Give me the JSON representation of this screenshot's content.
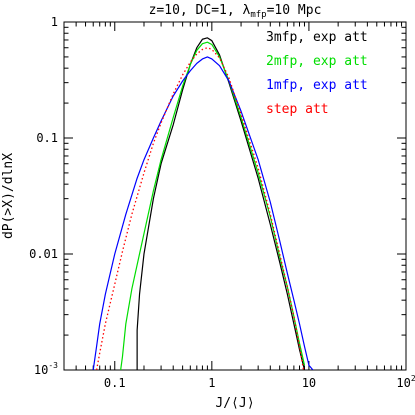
{
  "chart_data": {
    "type": "line",
    "title": {
      "prefix": "z=10, DC=1, ",
      "lambda_symbol": "λ",
      "lambda_sub": "mfp",
      "suffix": "=10 Mpc"
    },
    "xlabel": "J/⟨J⟩",
    "ylabel": "dP(>X)/dlnX",
    "xscale": "log",
    "yscale": "log",
    "xlim": [
      0.03,
      100
    ],
    "ylim": [
      0.001,
      1
    ],
    "x_ticks": [
      {
        "value": 0.1,
        "label": "0.1"
      },
      {
        "value": 1,
        "label": "1"
      },
      {
        "value": 10,
        "label": "10"
      },
      {
        "value": 100,
        "label": "10",
        "sup": "2"
      }
    ],
    "y_ticks": [
      {
        "value": 1,
        "label": "1"
      },
      {
        "value": 0.1,
        "label": "0.1"
      },
      {
        "value": 0.01,
        "label": "0.01"
      },
      {
        "value": 0.001,
        "label": "10",
        "sup": "-3"
      }
    ],
    "legend_placement": "top-right",
    "series": [
      {
        "name": "3mfp, exp att",
        "color": "#000000",
        "dash": "solid",
        "x": [
          0.17,
          0.17,
          0.18,
          0.2,
          0.25,
          0.3,
          0.4,
          0.5,
          0.6,
          0.7,
          0.8,
          0.9,
          1.0,
          1.2,
          1.5,
          2.0,
          3.0,
          4.0,
          5.0,
          6.0,
          7.0,
          8.0,
          9.0
        ],
        "y": [
          0.001,
          0.0022,
          0.0045,
          0.01,
          0.03,
          0.06,
          0.13,
          0.26,
          0.43,
          0.6,
          0.71,
          0.73,
          0.69,
          0.52,
          0.3,
          0.14,
          0.045,
          0.018,
          0.0085,
          0.0045,
          0.0025,
          0.0015,
          0.001
        ]
      },
      {
        "name": "2mfp, exp att",
        "color": "#00dd00",
        "dash": "solid",
        "x": [
          0.115,
          0.12,
          0.13,
          0.15,
          0.2,
          0.25,
          0.3,
          0.4,
          0.5,
          0.6,
          0.7,
          0.8,
          0.9,
          1.0,
          1.2,
          1.5,
          2.0,
          3.0,
          4.0,
          5.0,
          6.0,
          7.0,
          8.0,
          9.0
        ],
        "y": [
          0.001,
          0.0013,
          0.0025,
          0.005,
          0.015,
          0.035,
          0.065,
          0.15,
          0.28,
          0.43,
          0.57,
          0.65,
          0.67,
          0.64,
          0.5,
          0.31,
          0.15,
          0.05,
          0.021,
          0.0095,
          0.0052,
          0.0029,
          0.0017,
          0.0011
        ]
      },
      {
        "name": "1mfp, exp att",
        "color": "#0000ff",
        "dash": "solid",
        "x": [
          0.06,
          0.065,
          0.07,
          0.08,
          0.1,
          0.13,
          0.17,
          0.2,
          0.25,
          0.3,
          0.4,
          0.5,
          0.6,
          0.7,
          0.8,
          0.9,
          1.0,
          1.2,
          1.5,
          2.0,
          3.0,
          4.0,
          5.0,
          6.0,
          7.0,
          8.0,
          9.0,
          10.0,
          11.0
        ],
        "y": [
          0.001,
          0.0016,
          0.0025,
          0.0045,
          0.01,
          0.022,
          0.045,
          0.065,
          0.1,
          0.14,
          0.23,
          0.31,
          0.38,
          0.44,
          0.48,
          0.5,
          0.48,
          0.42,
          0.31,
          0.17,
          0.065,
          0.028,
          0.013,
          0.0068,
          0.004,
          0.0025,
          0.0016,
          0.0011,
          0.001
        ]
      },
      {
        "name": "step att",
        "color": "#ff0000",
        "dash": "dotted",
        "x": [
          0.065,
          0.07,
          0.08,
          0.1,
          0.12,
          0.15,
          0.2,
          0.25,
          0.3,
          0.4,
          0.5,
          0.6,
          0.7,
          0.8,
          0.9,
          1.0,
          1.2,
          1.5,
          2.0,
          3.0,
          4.0,
          5.0,
          6.0,
          7.0,
          8.0,
          8.8
        ],
        "y": [
          0.001,
          0.0014,
          0.0025,
          0.0055,
          0.0105,
          0.022,
          0.05,
          0.09,
          0.135,
          0.24,
          0.35,
          0.45,
          0.53,
          0.58,
          0.6,
          0.58,
          0.49,
          0.33,
          0.16,
          0.055,
          0.022,
          0.01,
          0.0052,
          0.0029,
          0.0016,
          0.001
        ]
      }
    ]
  }
}
